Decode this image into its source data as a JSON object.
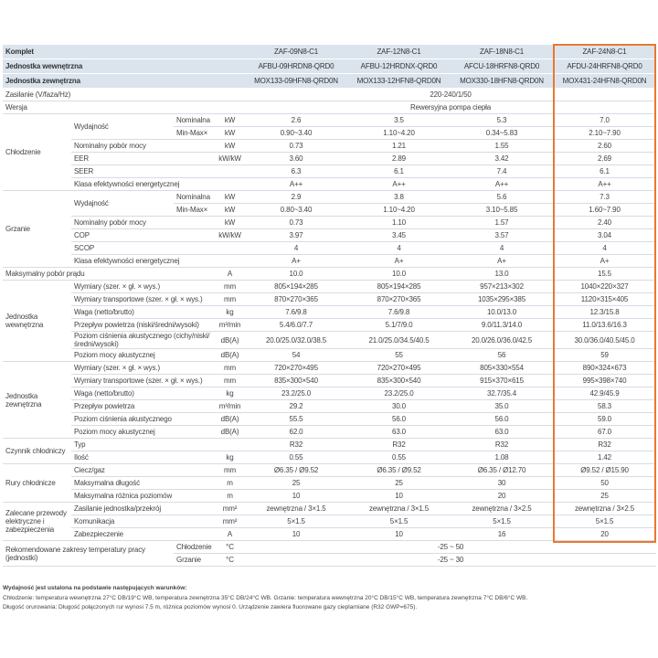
{
  "header": {
    "rows": [
      {
        "label": "Komplet",
        "values": [
          "ZAF-09N8-C1",
          "ZAF-12N8-C1",
          "ZAF-18N8-C1",
          "ZAF-24N8-C1"
        ]
      },
      {
        "label": "Jednostka wewnętrzna",
        "values": [
          "AFBU-09HRDN8-QRD0",
          "AFBU-12HRDNX-QRD0",
          "AFCU-18HRFN8-QRD0",
          "AFDU-24HRFN8-QRD0"
        ]
      },
      {
        "label": "Jednostka zewnętrzna",
        "values": [
          "MOX133-09HFN8-QRD0N",
          "MOX133-12HFN8-QRD0N",
          "MOX330-18HFN8-QRD0N",
          "MOX431-24HFN8-QRD0N"
        ]
      }
    ]
  },
  "sections": [
    {
      "rows": [
        {
          "label": "Zasilanie (V/faza/Hz)",
          "merged": "220-240/1/50"
        }
      ]
    },
    {
      "rows": [
        {
          "label": "Wersja",
          "merged": "Rewersyjna pompa ciepła"
        }
      ]
    },
    {
      "group": "Chłodzenie",
      "rows": [
        {
          "label": "Wydajność",
          "sub": "Nominalna",
          "unit": "kW",
          "values": [
            "2.6",
            "3.5",
            "5.3",
            "7.0"
          ]
        },
        {
          "sub": "Min-Max×",
          "unit": "kW",
          "values": [
            "0.90~3.40",
            "1.10~4.20",
            "0.34~5.83",
            "2.10~7.90"
          ]
        },
        {
          "label": "Nominalny pobór mocy",
          "unit": "kW",
          "values": [
            "0.73",
            "1.21",
            "1.55",
            "2.60"
          ]
        },
        {
          "label": "EER",
          "unit": "kW/kW",
          "values": [
            "3.60",
            "2.89",
            "3.42",
            "2.69"
          ]
        },
        {
          "label": "SEER",
          "values": [
            "6.3",
            "6.1",
            "7.4",
            "6.1"
          ]
        },
        {
          "label": "Klasa efektywności energetycznej",
          "values": [
            "A++",
            "A++",
            "A++",
            "A++"
          ]
        }
      ]
    },
    {
      "group": "Grzanie",
      "rows": [
        {
          "label": "Wydajność",
          "sub": "Nominalna",
          "unit": "kW",
          "values": [
            "2.9",
            "3.8",
            "5.6",
            "7.3"
          ]
        },
        {
          "sub": "Min-Max×",
          "unit": "kW",
          "values": [
            "0.80~3.40",
            "1.10~4.20",
            "3.10~5.85",
            "1.60~7.90"
          ]
        },
        {
          "label": "Nominalny pobór mocy",
          "unit": "kW",
          "values": [
            "0.73",
            "1.10",
            "1.57",
            "2.40"
          ]
        },
        {
          "label": "COP",
          "unit": "kW/kW",
          "values": [
            "3.97",
            "3.45",
            "3.57",
            "3.04"
          ]
        },
        {
          "label": "SCOP",
          "values": [
            "4",
            "4",
            "4",
            "4"
          ]
        },
        {
          "label": "Klasa efektywności energetycznej",
          "values": [
            "A+",
            "A+",
            "A+",
            "A+"
          ]
        }
      ]
    },
    {
      "rows": [
        {
          "label": "Maksymalny pobór prądu",
          "unit": "A",
          "values": [
            "10.0",
            "10.0",
            "13.0",
            "15.5"
          ]
        }
      ]
    },
    {
      "group": "Jednostka wewnętrzna",
      "rows": [
        {
          "label": "Wymiary (szer. × gł. × wys.)",
          "unit": "mm",
          "values": [
            "805×194×285",
            "805×194×285",
            "957×213×302",
            "1040×220×327"
          ]
        },
        {
          "label": "Wymiary transportowe (szer. × gł. × wys.)",
          "unit": "mm",
          "values": [
            "870×270×365",
            "870×270×365",
            "1035×295×385",
            "1120×315×405"
          ]
        },
        {
          "label": "Waga (netto/brutto)",
          "unit": "kg",
          "values": [
            "7.6/9.8",
            "7.6/9.8",
            "10.0/13.0",
            "12.3/15.8"
          ]
        },
        {
          "label": "Przepływ powietrza (niski/średni/wysoki)",
          "unit": "m³/min",
          "values": [
            "5.4/6.0/7.7",
            "5.1/7/9.0",
            "9.0/11.3/14.0",
            "11.0/13.6/16.3"
          ]
        },
        {
          "label": "Poziom ciśnienia akustycznego (cichy/niski/średni/wysoki)",
          "unit": "dB(A)",
          "values": [
            "20.0/25.0/32.0/38.5",
            "21.0/25.0/34.5/40.5",
            "20.0/26.0/36.0/42.5",
            "30.0/36.0/40.5/45.0"
          ]
        },
        {
          "label": "Poziom mocy akustycznej",
          "unit": "dB(A)",
          "values": [
            "54",
            "55",
            "56",
            "59"
          ]
        }
      ]
    },
    {
      "group": "Jednostka zewnętrzna",
      "rows": [
        {
          "label": "Wymiary (szer. × gł. × wys.)",
          "unit": "mm",
          "values": [
            "720×270×495",
            "720×270×495",
            "805×330×554",
            "890×324×673"
          ]
        },
        {
          "label": "Wymiary transportowe (szer. × gł. × wys.)",
          "unit": "mm",
          "values": [
            "835×300×540",
            "835×300×540",
            "915×370×615",
            "995×398×740"
          ]
        },
        {
          "label": "Waga (netto/brutto)",
          "unit": "kg",
          "values": [
            "23.2/25.0",
            "23.2/25.0",
            "32.7/35.4",
            "42.9/45.9"
          ]
        },
        {
          "label": "Przepływ powietrza",
          "unit": "m³/min",
          "values": [
            "29.2",
            "30.0",
            "35.0",
            "58.3"
          ]
        },
        {
          "label": "Poziom ciśnienia akustycznego",
          "unit": "dB(A)",
          "values": [
            "55.5",
            "56.0",
            "56.0",
            "59.0"
          ]
        },
        {
          "label": "Poziom mocy akustycznej",
          "unit": "dB(A)",
          "values": [
            "62.0",
            "63.0",
            "63.0",
            "67.0"
          ]
        }
      ]
    },
    {
      "group": "Czynnik chłodniczy",
      "rows": [
        {
          "label": "Typ",
          "values": [
            "R32",
            "R32",
            "R32",
            "R32"
          ]
        },
        {
          "label": "Ilość",
          "unit": "kg",
          "values": [
            "0.55",
            "0.55",
            "1.08",
            "1.42"
          ]
        }
      ]
    },
    {
      "group": "Rury chłodnicze",
      "rows": [
        {
          "label": "Ciecz/gaz",
          "unit": "mm",
          "values": [
            "Ø6.35 / Ø9.52",
            "Ø6.35 / Ø9.52",
            "Ø6.35 / Ø12.70",
            "Ø9.52 / Ø15.90"
          ]
        },
        {
          "label": "Maksymalna długość",
          "unit": "m",
          "values": [
            "25",
            "25",
            "30",
            "50"
          ]
        },
        {
          "label": "Maksymalna różnica poziomów",
          "unit": "m",
          "values": [
            "10",
            "10",
            "20",
            "25"
          ]
        }
      ]
    },
    {
      "group": "Zalecane przewody elektryczne i zabezpieczenia",
      "rows": [
        {
          "label": "Zasilanie jednostka/przekrój",
          "unit": "mm²",
          "values": [
            "zewnętrzna / 3×1.5",
            "zewnętrzna / 3×1.5",
            "zewnętrzna / 3×2.5",
            "zewnętrzna / 3×2.5"
          ]
        },
        {
          "label": "Komunikacja",
          "unit": "mm²",
          "values": [
            "5×1.5",
            "5×1.5",
            "5×1.5",
            "5×1.5"
          ]
        },
        {
          "label": "Zabezpieczenie",
          "unit": "A",
          "values": [
            "10",
            "10",
            "16",
            "20"
          ]
        }
      ]
    },
    {
      "group": "Rekomendowane zakresy temperatury pracy (jednostki)",
      "rows": [
        {
          "sub": "Chłodzenie",
          "unit": "°C",
          "merged": "-25 ~ 50"
        },
        {
          "sub": "Grzanie",
          "unit": "°C",
          "merged": "-25 ~ 30"
        }
      ]
    }
  ],
  "notes": {
    "heading": "Wydajność jest ustalona na podstawie następujących warunków:",
    "lines": [
      "Chłodzenie: temperatura wewnętrzna 27°C DB/19°C WB, temperatura zewnętrzna 35°C DB/24°C WB. Grzanie: temperatura wewnętrzna 20°C DB/15°C WB, temperatura zewnętrzna 7°C DB/6°C WB.",
      "Długość orurowania: Długość połączonych rur wynosi 7.5 m, różnica poziomów wynosi 0. Urządzenie zawiera fluorowane gazy cieplarniane (R32 GWP=675)."
    ]
  }
}
